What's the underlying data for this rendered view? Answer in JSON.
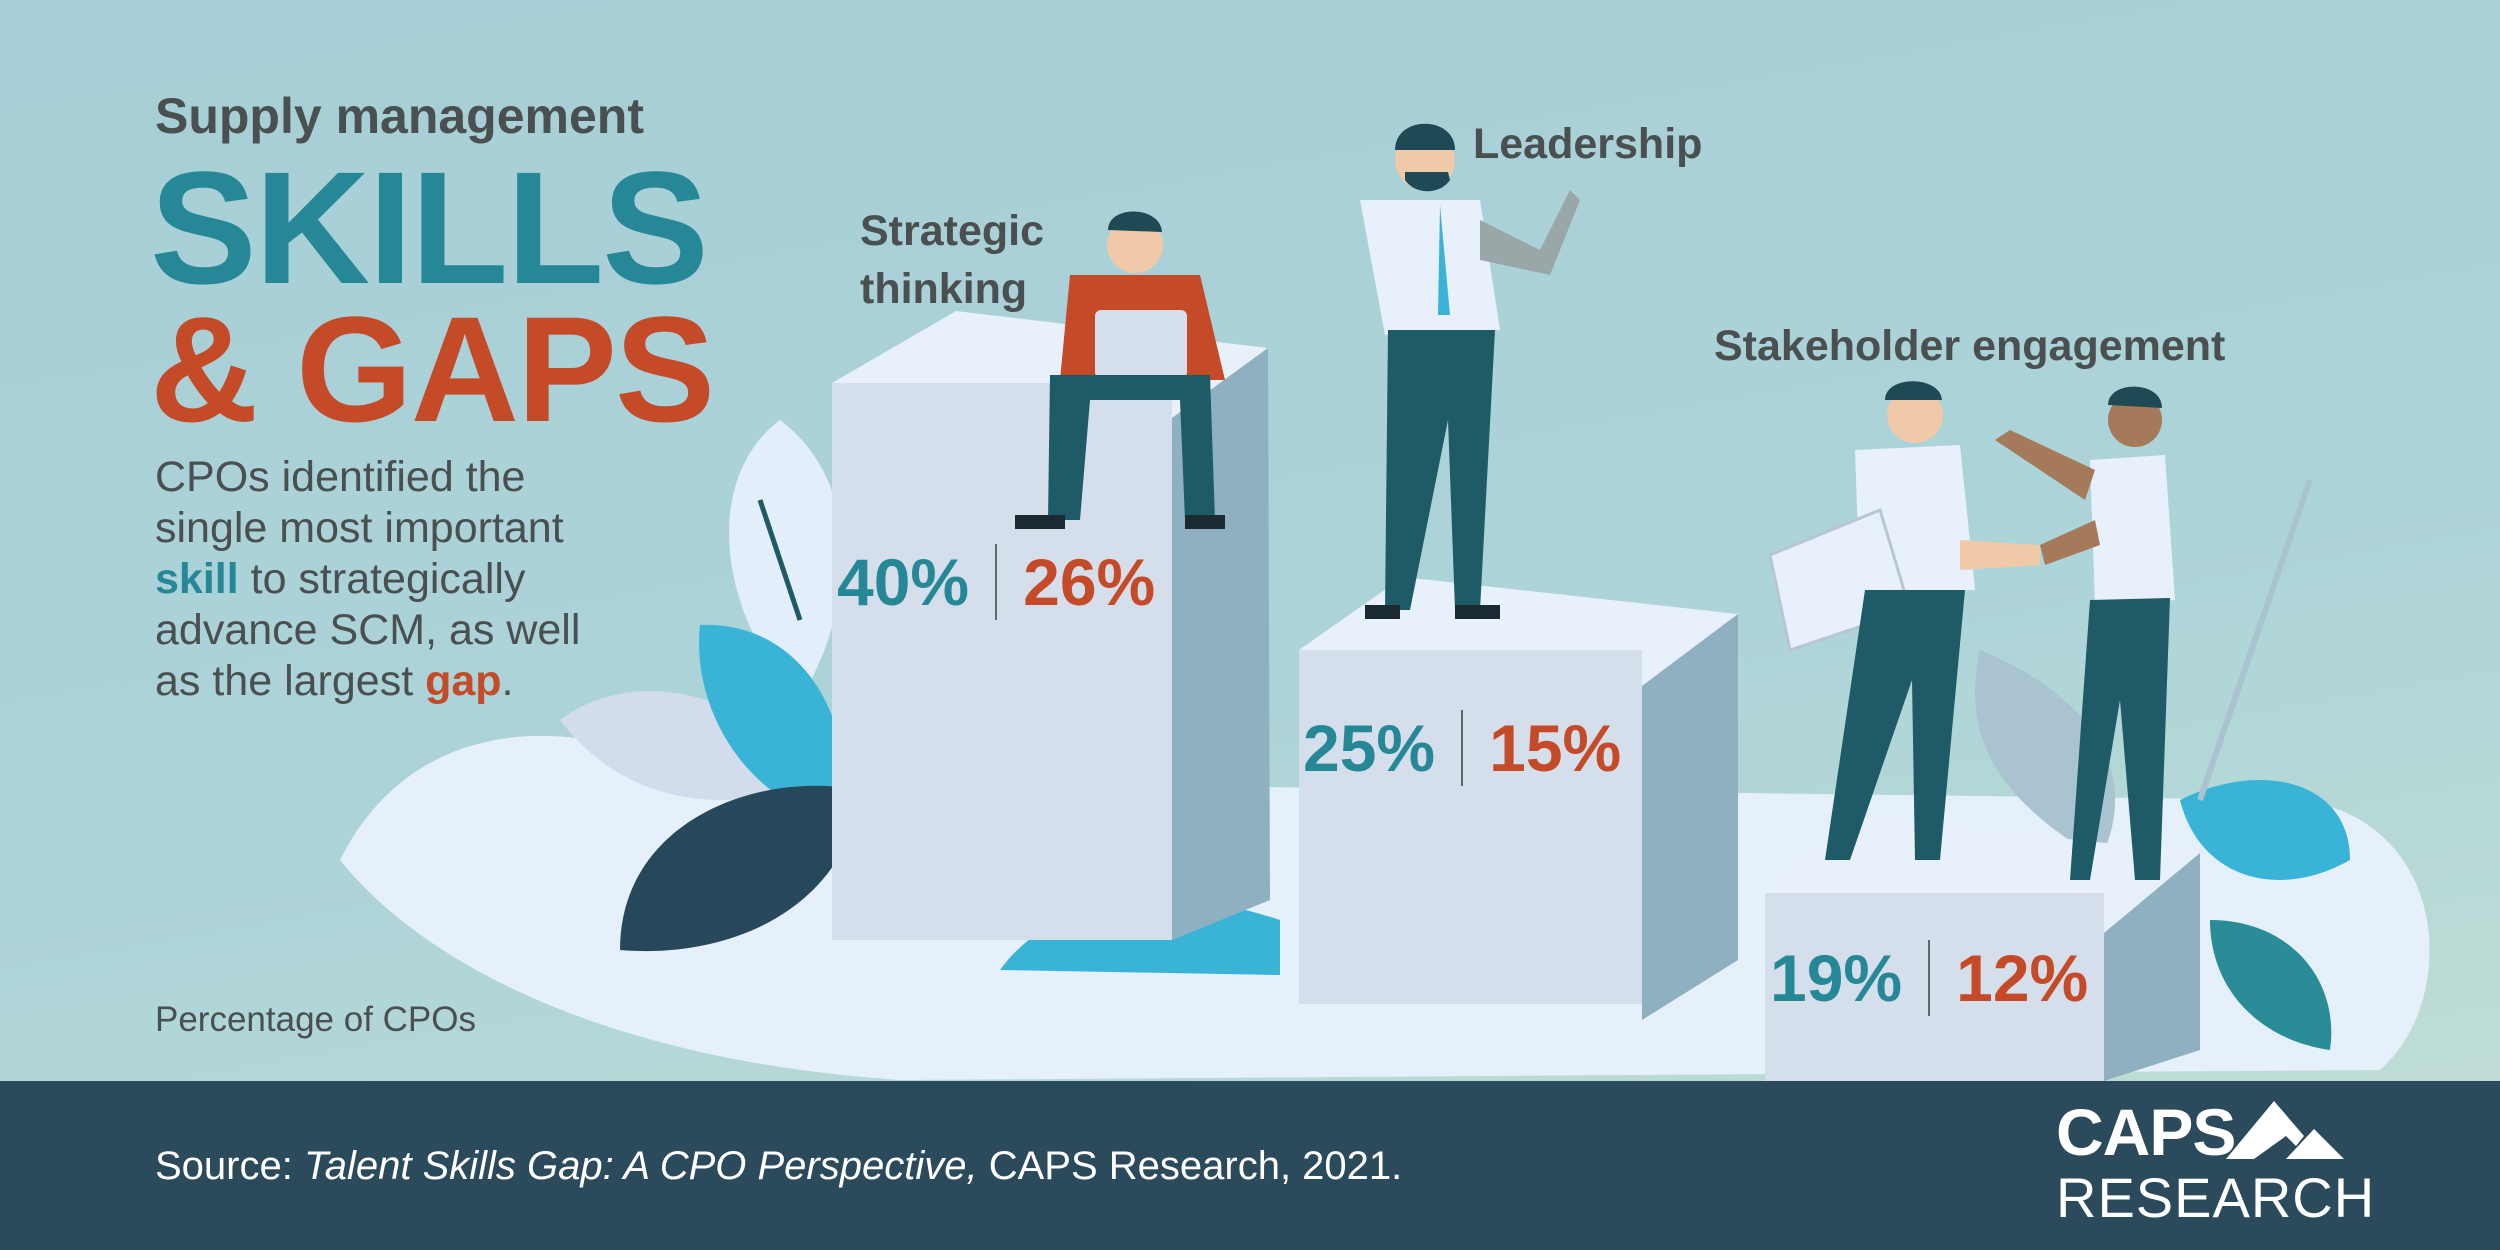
{
  "header": {
    "subtitle": "Supply management",
    "title_line1": "SKILLS",
    "title_line2": "& GAPS"
  },
  "description": {
    "line1": "CPOs identified the",
    "line2": "single most important",
    "skill_word": "skill",
    "line3_rest": " to strategically",
    "line4": "advance SCM, as well",
    "line5_start": "as the largest ",
    "gap_word": "gap",
    "line5_end": "."
  },
  "note": "Percentage of CPOs",
  "categories": [
    {
      "label_line1": "Strategic",
      "label_line2": "thinking",
      "skill_pct": "40%",
      "gap_pct": "26%"
    },
    {
      "label_line1": "Leadership",
      "skill_pct": "25%",
      "gap_pct": "15%"
    },
    {
      "label_line1": "Stakeholder engagement",
      "skill_pct": "19%",
      "gap_pct": "12%"
    }
  ],
  "footer": {
    "source_prefix": "Source: ",
    "source_title": "Talent Skills Gap: A CPO Perspective,",
    "source_rest": " CAPS Research, 2021.",
    "logo_top": "CAPS",
    "logo_bottom": "RESEARCH"
  },
  "colors": {
    "skill": "#268896",
    "gap": "#c44a28",
    "text": "#4a4f50",
    "footer": "#2b4a5b"
  }
}
